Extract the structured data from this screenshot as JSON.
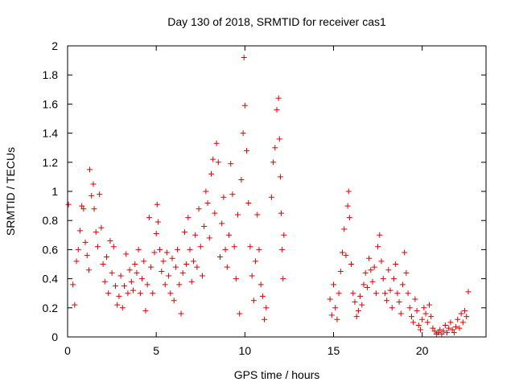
{
  "chart_data": {
    "type": "scatter",
    "title": "Day 130 of 2018, SRMTID for receiver cas1",
    "xlabel": "GPS time / hours",
    "ylabel": "SRMTID / TECUs",
    "xlim": [
      0,
      23.6
    ],
    "ylim": [
      0,
      2
    ],
    "x_ticks": [
      0,
      5,
      10,
      15,
      20
    ],
    "x_tick_labels": [
      "0",
      "5",
      "10",
      "15",
      "20"
    ],
    "y_ticks": [
      0,
      0.2,
      0.4,
      0.6,
      0.8,
      1,
      1.2,
      1.4,
      1.6,
      1.8,
      2
    ],
    "y_tick_labels": [
      "0",
      "0.2",
      "0.4",
      "0.6",
      "0.8",
      "1",
      "1.2",
      "1.4",
      "1.6",
      "1.8",
      "2"
    ],
    "marker": "+",
    "color": "#e00000",
    "grid": false,
    "series": [
      {
        "name": "SRMTID",
        "points": [
          [
            0.05,
            0.91
          ],
          [
            0.3,
            0.36
          ],
          [
            0.4,
            0.22
          ],
          [
            0.5,
            0.52
          ],
          [
            0.6,
            0.6
          ],
          [
            0.7,
            0.73
          ],
          [
            0.8,
            0.9
          ],
          [
            0.9,
            0.88
          ],
          [
            1.0,
            0.65
          ],
          [
            1.1,
            0.56
          ],
          [
            1.2,
            0.46
          ],
          [
            1.25,
            1.15
          ],
          [
            1.35,
            0.97
          ],
          [
            1.45,
            1.05
          ],
          [
            1.5,
            0.88
          ],
          [
            1.6,
            0.72
          ],
          [
            1.7,
            0.62
          ],
          [
            1.8,
            0.98
          ],
          [
            1.9,
            0.75
          ],
          [
            2.0,
            0.5
          ],
          [
            2.1,
            0.38
          ],
          [
            2.2,
            0.55
          ],
          [
            2.3,
            0.3
          ],
          [
            2.4,
            0.66
          ],
          [
            2.5,
            0.44
          ],
          [
            2.6,
            0.62
          ],
          [
            2.7,
            0.35
          ],
          [
            2.8,
            0.22
          ],
          [
            2.9,
            0.28
          ],
          [
            3.0,
            0.42
          ],
          [
            3.1,
            0.2
          ],
          [
            3.2,
            0.35
          ],
          [
            3.3,
            0.57
          ],
          [
            3.4,
            0.3
          ],
          [
            3.5,
            0.46
          ],
          [
            3.6,
            0.38
          ],
          [
            3.7,
            0.32
          ],
          [
            3.8,
            0.5
          ],
          [
            3.9,
            0.44
          ],
          [
            4.0,
            0.6
          ],
          [
            4.1,
            0.3
          ],
          [
            4.2,
            0.4
          ],
          [
            4.3,
            0.52
          ],
          [
            4.4,
            0.18
          ],
          [
            4.5,
            0.36
          ],
          [
            4.6,
            0.82
          ],
          [
            4.7,
            0.48
          ],
          [
            4.8,
            0.3
          ],
          [
            4.9,
            0.58
          ],
          [
            5.0,
            0.71
          ],
          [
            5.05,
            0.91
          ],
          [
            5.1,
            0.79
          ],
          [
            5.2,
            0.6
          ],
          [
            5.3,
            0.45
          ],
          [
            5.4,
            0.52
          ],
          [
            5.5,
            0.36
          ],
          [
            5.6,
            0.58
          ],
          [
            5.7,
            0.42
          ],
          [
            5.8,
            0.3
          ],
          [
            5.9,
            0.54
          ],
          [
            6.0,
            0.25
          ],
          [
            6.1,
            0.48
          ],
          [
            6.2,
            0.6
          ],
          [
            6.3,
            0.36
          ],
          [
            6.4,
            0.16
          ],
          [
            6.5,
            0.44
          ],
          [
            6.6,
            0.72
          ],
          [
            6.7,
            0.5
          ],
          [
            6.8,
            0.82
          ],
          [
            6.9,
            0.6
          ],
          [
            7.0,
            0.38
          ],
          [
            7.1,
            0.52
          ],
          [
            7.2,
            0.7
          ],
          [
            7.3,
            0.48
          ],
          [
            7.4,
            0.88
          ],
          [
            7.5,
            0.62
          ],
          [
            7.6,
            0.42
          ],
          [
            7.7,
            0.76
          ],
          [
            7.8,
            1.0
          ],
          [
            7.9,
            0.92
          ],
          [
            8.0,
            0.68
          ],
          [
            8.1,
            1.12
          ],
          [
            8.2,
            1.22
          ],
          [
            8.3,
            0.85
          ],
          [
            8.4,
            1.33
          ],
          [
            8.5,
            1.2
          ],
          [
            8.6,
            0.55
          ],
          [
            8.7,
            0.78
          ],
          [
            8.8,
            0.96
          ],
          [
            8.9,
            0.6
          ],
          [
            9.0,
            0.48
          ],
          [
            9.1,
            0.7
          ],
          [
            9.2,
            1.19
          ],
          [
            9.3,
            0.98
          ],
          [
            9.4,
            0.62
          ],
          [
            9.5,
            0.4
          ],
          [
            9.6,
            0.84
          ],
          [
            9.7,
            0.16
          ],
          [
            9.8,
            1.08
          ],
          [
            9.9,
            1.4
          ],
          [
            9.95,
            1.92
          ],
          [
            10.0,
            1.59
          ],
          [
            10.1,
            1.28
          ],
          [
            10.2,
            0.92
          ],
          [
            10.3,
            0.62
          ],
          [
            10.4,
            0.42
          ],
          [
            10.5,
            0.25
          ],
          [
            10.6,
            0.52
          ],
          [
            10.7,
            0.84
          ],
          [
            10.8,
            0.6
          ],
          [
            10.9,
            0.36
          ],
          [
            11.0,
            0.28
          ],
          [
            11.1,
            0.12
          ],
          [
            11.2,
            0.2
          ],
          [
            11.5,
            0.96
          ],
          [
            11.6,
            1.2
          ],
          [
            11.7,
            1.3
          ],
          [
            11.8,
            1.56
          ],
          [
            11.9,
            1.64
          ],
          [
            11.95,
            1.36
          ],
          [
            12.0,
            1.1
          ],
          [
            12.05,
            0.85
          ],
          [
            12.1,
            0.6
          ],
          [
            12.15,
            0.4
          ],
          [
            12.2,
            0.7
          ],
          [
            14.8,
            0.26
          ],
          [
            14.9,
            0.15
          ],
          [
            15.0,
            0.36
          ],
          [
            15.1,
            0.2
          ],
          [
            15.2,
            0.12
          ],
          [
            15.3,
            0.3
          ],
          [
            15.4,
            0.45
          ],
          [
            15.5,
            0.58
          ],
          [
            15.6,
            0.74
          ],
          [
            15.7,
            0.56
          ],
          [
            15.8,
            0.9
          ],
          [
            15.85,
            1.0
          ],
          [
            15.9,
            0.82
          ],
          [
            16.0,
            0.5
          ],
          [
            16.1,
            0.3
          ],
          [
            16.2,
            0.24
          ],
          [
            16.3,
            0.14
          ],
          [
            16.4,
            0.18
          ],
          [
            16.5,
            0.28
          ],
          [
            16.6,
            0.22
          ],
          [
            16.7,
            0.36
          ],
          [
            16.8,
            0.44
          ],
          [
            16.9,
            0.34
          ],
          [
            17.0,
            0.54
          ],
          [
            17.1,
            0.46
          ],
          [
            17.2,
            0.38
          ],
          [
            17.3,
            0.48
          ],
          [
            17.4,
            0.3
          ],
          [
            17.5,
            0.62
          ],
          [
            17.6,
            0.7
          ],
          [
            17.7,
            0.52
          ],
          [
            17.8,
            0.4
          ],
          [
            17.9,
            0.3
          ],
          [
            18.0,
            0.25
          ],
          [
            18.1,
            0.46
          ],
          [
            18.2,
            0.32
          ],
          [
            18.3,
            0.2
          ],
          [
            18.4,
            0.4
          ],
          [
            18.5,
            0.5
          ],
          [
            18.6,
            0.3
          ],
          [
            18.7,
            0.24
          ],
          [
            18.8,
            0.16
          ],
          [
            18.9,
            0.36
          ],
          [
            19.0,
            0.58
          ],
          [
            19.1,
            0.44
          ],
          [
            19.2,
            0.3
          ],
          [
            19.3,
            0.2
          ],
          [
            19.4,
            0.14
          ],
          [
            19.5,
            0.1
          ],
          [
            19.6,
            0.26
          ],
          [
            19.7,
            0.18
          ],
          [
            19.8,
            0.08
          ],
          [
            19.9,
            0.05
          ],
          [
            20.0,
            0.12
          ],
          [
            20.1,
            0.2
          ],
          [
            20.2,
            0.16
          ],
          [
            20.3,
            0.1
          ],
          [
            20.4,
            0.22
          ],
          [
            20.5,
            0.14
          ],
          [
            20.6,
            0.06
          ],
          [
            20.7,
            0.04
          ],
          [
            20.8,
            0.02
          ],
          [
            20.9,
            0.03
          ],
          [
            21.0,
            0.05
          ],
          [
            21.1,
            0.02
          ],
          [
            21.2,
            0.04
          ],
          [
            21.3,
            0.08
          ],
          [
            21.4,
            0.03
          ],
          [
            21.5,
            0.06
          ],
          [
            21.6,
            0.1
          ],
          [
            21.7,
            0.05
          ],
          [
            21.8,
            0.03
          ],
          [
            21.9,
            0.07
          ],
          [
            22.0,
            0.12
          ],
          [
            22.1,
            0.06
          ],
          [
            22.2,
            0.16
          ],
          [
            22.3,
            0.1
          ],
          [
            22.4,
            0.18
          ],
          [
            22.5,
            0.14
          ],
          [
            22.6,
            0.31
          ]
        ]
      }
    ]
  }
}
